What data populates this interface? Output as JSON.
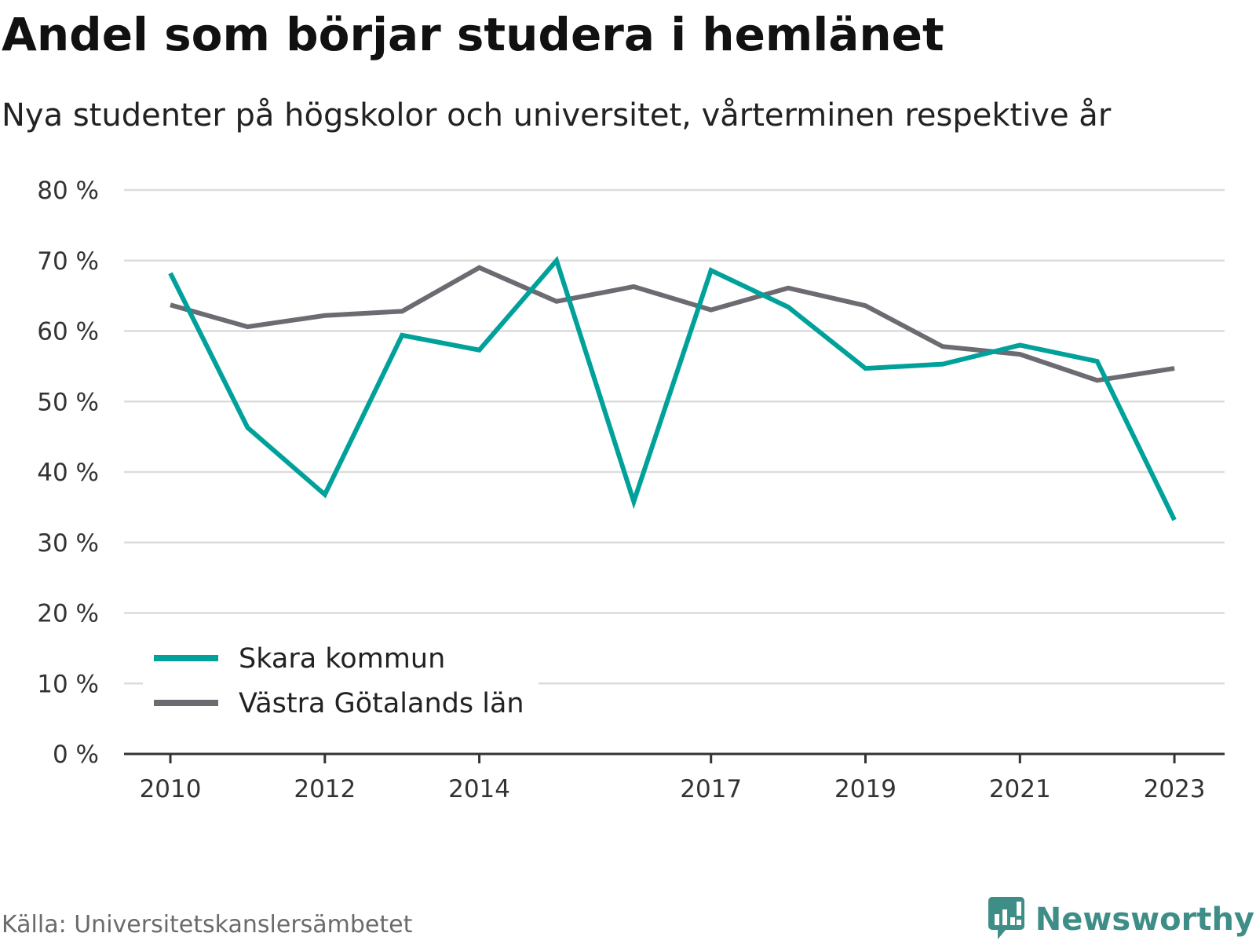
{
  "header": {
    "title": "Andel som börjar studera i hemlänet",
    "subtitle": "Nya studenter på högskolor och universitet, vårterminen respektive år"
  },
  "footer": {
    "source": "Källa: Universitetskanslersämbetet",
    "brand": "Newsworthy"
  },
  "colors": {
    "skara": "#00a19a",
    "vg": "#6d6b72",
    "grid": "#dcdcdc",
    "axis": "#333333",
    "brand": "#3e8e87"
  },
  "icons": {
    "brand_logo": "newsworthy-logo-icon"
  },
  "chart_data": {
    "type": "line",
    "x": [
      2010,
      2011,
      2012,
      2013,
      2014,
      2015,
      2016,
      2017,
      2018,
      2019,
      2020,
      2021,
      2022,
      2023
    ],
    "x_tick_labels": [
      "2010",
      "2012",
      "2014",
      "2017",
      "2019",
      "2021",
      "2023"
    ],
    "x_tick_values": [
      2010,
      2012,
      2014,
      2017,
      2019,
      2021,
      2023
    ],
    "y_tick_labels": [
      "0 %",
      "10 %",
      "20 %",
      "30 %",
      "40 %",
      "50 %",
      "60 %",
      "70 %",
      "80 %"
    ],
    "y_tick_values": [
      0,
      10,
      20,
      30,
      40,
      50,
      60,
      70,
      80
    ],
    "ylim": [
      0,
      80
    ],
    "xlim": [
      2009.4,
      2023.65
    ],
    "grid": true,
    "legend_position": "bottom-left",
    "series": [
      {
        "name": "Skara kommun",
        "color": "#00a19a",
        "values": [
          68.2,
          46.3,
          36.8,
          59.4,
          57.3,
          70.0,
          35.8,
          68.6,
          63.4,
          54.7,
          55.3,
          58.0,
          55.7,
          33.2
        ]
      },
      {
        "name": "Västra Götalands län",
        "color": "#6d6b72",
        "values": [
          63.7,
          60.6,
          62.2,
          62.8,
          69.0,
          64.2,
          66.3,
          63.0,
          66.1,
          63.6,
          57.8,
          56.7,
          53.0,
          54.7
        ]
      }
    ]
  }
}
